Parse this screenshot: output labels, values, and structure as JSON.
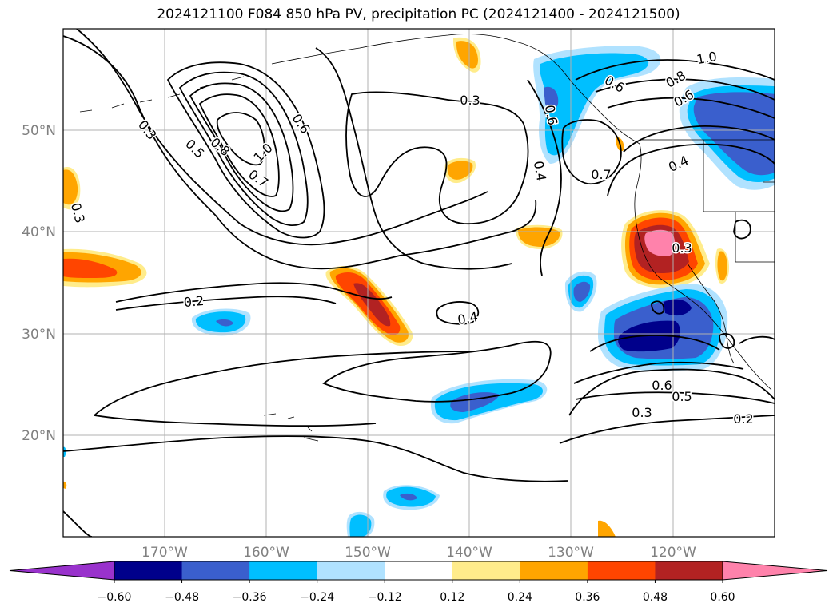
{
  "title": "2024121100 F084 850 hPa PV, precipitation PC (2024121400 - 2024121500)",
  "map": {
    "lon_labels": [
      "170°W",
      "160°W",
      "150°W",
      "140°W",
      "130°W",
      "120°W"
    ],
    "lat_labels": [
      "50°N",
      "40°N",
      "30°N",
      "20°N"
    ],
    "grid_label_color": "#808080"
  },
  "contour_labels": [
    {
      "text": "0.3"
    },
    {
      "text": "0.5"
    },
    {
      "text": "0.8"
    },
    {
      "text": "1.0"
    },
    {
      "text": "0.7"
    },
    {
      "text": "0.6"
    },
    {
      "text": "0.3"
    },
    {
      "text": "0.2"
    },
    {
      "text": "0.4"
    },
    {
      "text": "0.4"
    },
    {
      "text": "0.3"
    },
    {
      "text": "0.6"
    },
    {
      "text": "0.7"
    },
    {
      "text": "0.4"
    },
    {
      "text": "0.6"
    },
    {
      "text": "0.8"
    },
    {
      "text": "0.6"
    },
    {
      "text": "1.0"
    },
    {
      "text": "0.3"
    },
    {
      "text": "0.6"
    },
    {
      "text": "0.5"
    },
    {
      "text": "0.3"
    },
    {
      "text": "0.2"
    }
  ],
  "colorbar": {
    "tick_labels": [
      "−0.60",
      "−0.48",
      "−0.36",
      "−0.24",
      "−0.12",
      "0.12",
      "0.24",
      "0.36",
      "0.48",
      "0.60"
    ],
    "colors": [
      "#9932cc",
      "#00008b",
      "#3a5fcd",
      "#00bfff",
      "#b0e2ff",
      "#ffffff",
      "#ffec8b",
      "#ffa500",
      "#ff4500",
      "#b22222",
      "#ff82ab"
    ]
  }
}
